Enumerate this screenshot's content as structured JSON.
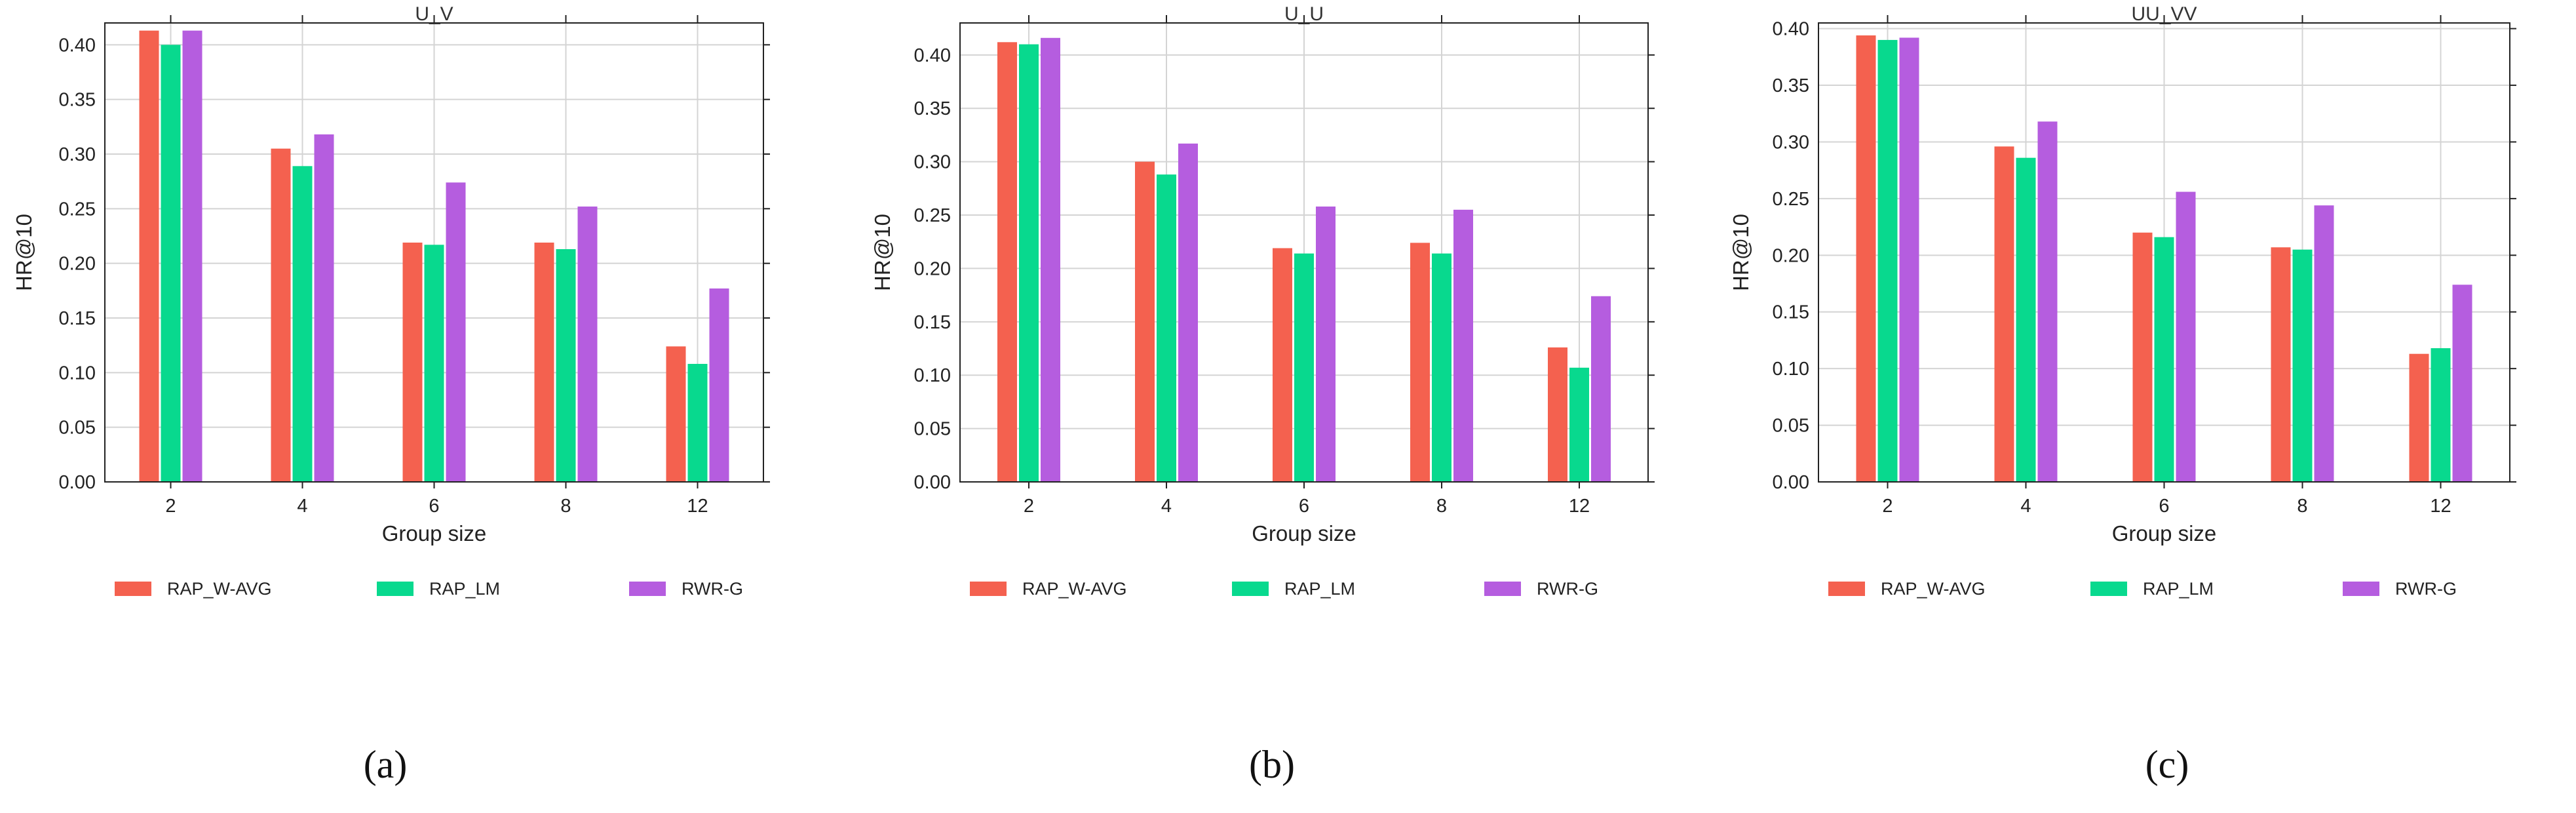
{
  "colors": {
    "RAP_W-AVG": "#f4614f",
    "RAP_LM": "#08d98e",
    "RWR-G": "#b55ddf",
    "grid": "#d4d4d4",
    "axes": "#222222"
  },
  "chart_data": [
    {
      "type": "bar",
      "title": "U_V",
      "xlabel": "Group size",
      "ylabel": "HR@10",
      "ylim": [
        0,
        0.42
      ],
      "yticks": [
        "0.00",
        "0.05",
        "0.10",
        "0.15",
        "0.20",
        "0.25",
        "0.30",
        "0.35",
        "0.40"
      ],
      "categories": [
        "2",
        "4",
        "6",
        "8",
        "12"
      ],
      "series": [
        {
          "name": "RAP_W-AVG",
          "values": [
            0.413,
            0.305,
            0.219,
            0.219,
            0.124
          ]
        },
        {
          "name": "RAP_LM",
          "values": [
            0.4,
            0.289,
            0.217,
            0.213,
            0.108
          ]
        },
        {
          "name": "RWR-G",
          "values": [
            0.413,
            0.318,
            0.274,
            0.252,
            0.177
          ]
        }
      ],
      "legend": "bottom",
      "caption": "(a)"
    },
    {
      "type": "bar",
      "title": "U_U",
      "xlabel": "Group size",
      "ylabel": "HR@10",
      "ylim": [
        0,
        0.43
      ],
      "yticks": [
        "0.00",
        "0.05",
        "0.10",
        "0.15",
        "0.20",
        "0.25",
        "0.30",
        "0.35",
        "0.40"
      ],
      "categories": [
        "2",
        "4",
        "6",
        "8",
        "12"
      ],
      "series": [
        {
          "name": "RAP_W-AVG",
          "values": [
            0.412,
            0.3,
            0.219,
            0.224,
            0.126
          ]
        },
        {
          "name": "RAP_LM",
          "values": [
            0.41,
            0.288,
            0.214,
            0.214,
            0.107
          ]
        },
        {
          "name": "RWR-G",
          "values": [
            0.416,
            0.317,
            0.258,
            0.255,
            0.174
          ]
        }
      ],
      "legend": "bottom",
      "caption": "(b)"
    },
    {
      "type": "bar",
      "title": "UU_VV",
      "xlabel": "Group size",
      "ylabel": "HR@10",
      "ylim": [
        0,
        0.405
      ],
      "yticks": [
        "0.00",
        "0.05",
        "0.10",
        "0.15",
        "0.20",
        "0.25",
        "0.30",
        "0.35",
        "0.40"
      ],
      "categories": [
        "2",
        "4",
        "6",
        "8",
        "12"
      ],
      "series": [
        {
          "name": "RAP_W-AVG",
          "values": [
            0.394,
            0.296,
            0.22,
            0.207,
            0.113
          ]
        },
        {
          "name": "RAP_LM",
          "values": [
            0.39,
            0.286,
            0.216,
            0.205,
            0.118
          ]
        },
        {
          "name": "RWR-G",
          "values": [
            0.392,
            0.318,
            0.256,
            0.244,
            0.174
          ]
        }
      ],
      "legend": "bottom",
      "caption": "(c)"
    }
  ]
}
